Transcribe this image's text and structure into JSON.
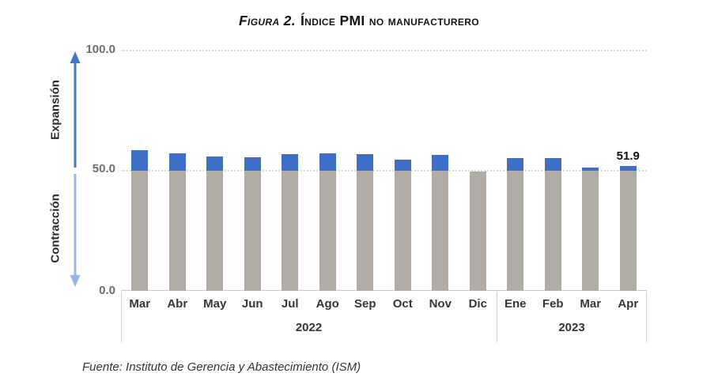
{
  "header": {
    "title_prefix": "Figura 2.",
    "title_main": "Índice PMI no manufacturero"
  },
  "y_axis": {
    "ticks": [
      "100.0",
      "50.0",
      "0.0"
    ],
    "expansion_label": "Expansión",
    "contraction_label": "Contracción"
  },
  "footer": {
    "source": "Fuente: Instituto de Gerencia y Abastecimiento (ISM)"
  },
  "chart_data": {
    "type": "bar",
    "title": "Figura 2. Índice PMI no manufacturero",
    "categories": [
      "Mar",
      "Abr",
      "May",
      "Jun",
      "Jul",
      "Ago",
      "Sep",
      "Oct",
      "Nov",
      "Dic",
      "Ene",
      "Feb",
      "Mar",
      "Apr"
    ],
    "year_groups": [
      {
        "label": "2022",
        "months": 10
      },
      {
        "label": "2023",
        "months": 4
      }
    ],
    "values": [
      58.3,
      57.1,
      55.9,
      55.3,
      56.7,
      56.9,
      56.7,
      54.4,
      56.5,
      49.6,
      55.2,
      55.1,
      51.2,
      51.9
    ],
    "threshold": 50,
    "ylim": [
      0,
      100
    ],
    "y_tick_values": [
      0,
      50,
      100
    ],
    "grid": "dotted horizontal at 50 and 100",
    "annotated_point": {
      "category": "Apr",
      "year": "2023",
      "label": "51.9"
    },
    "annotations": {
      "above_threshold": "Expansión",
      "below_threshold": "Contracción"
    },
    "colors": {
      "bar_above_threshold": "#3f6ec6",
      "bar_below_threshold": "#b1aba6",
      "expansion_arrow": "#4576cd",
      "contraction_arrow": "#9ab4e4"
    }
  }
}
